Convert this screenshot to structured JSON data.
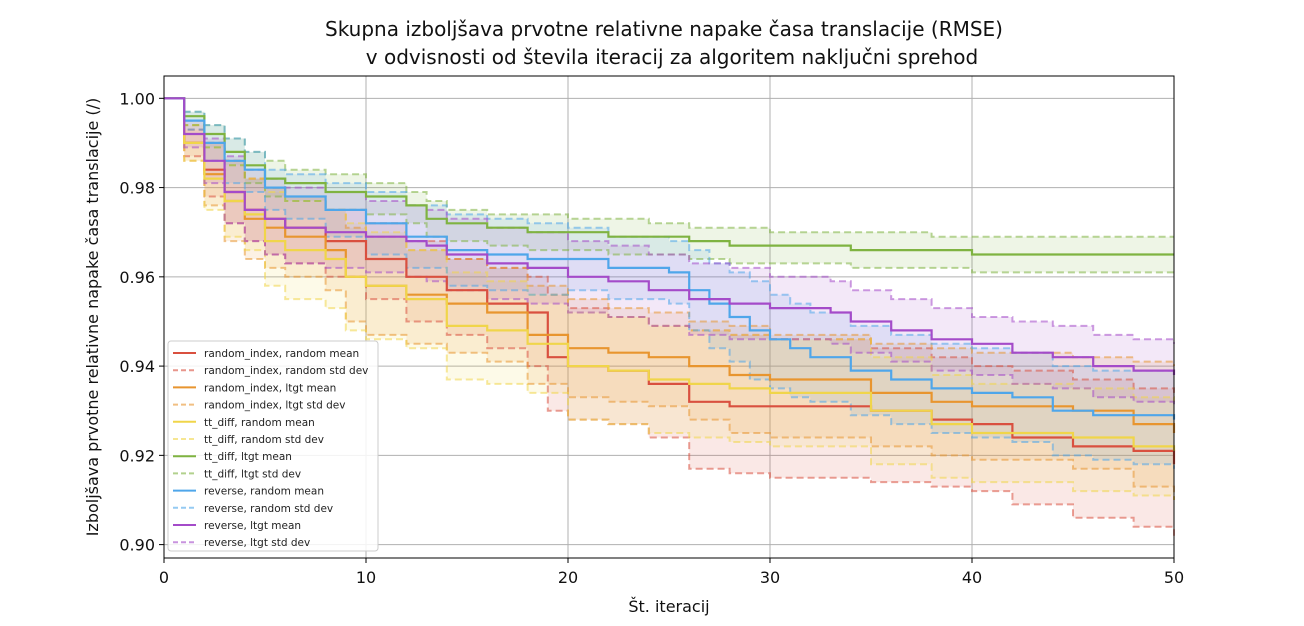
{
  "chart_data": {
    "type": "line",
    "title_line1": "Skupna izboljšava prvotne relativne napake časa translacije (RMSE)",
    "title_line2": "v odvisnosti od števila iteracij za algoritem naključni sprehod",
    "xlabel": "Št. iteracij",
    "ylabel": "Izboljšava prvotne relativne napake časa translacije (/)",
    "xlim": [
      0,
      50
    ],
    "ylim": [
      0.897,
      1.005
    ],
    "xticks": [
      0,
      10,
      20,
      30,
      40,
      50
    ],
    "yticks": [
      0.9,
      0.92,
      0.94,
      0.96,
      0.98,
      1.0
    ],
    "ytick_labels": [
      "0.90",
      "0.92",
      "0.94",
      "0.96",
      "0.98",
      "1.00"
    ],
    "grid": true,
    "legend_position": "lower-left",
    "series": [
      {
        "name": "random_index, random mean",
        "std_name": "random_index, random std dev",
        "color": "#d9503f",
        "x": [
          0,
          1,
          2,
          3,
          4,
          5,
          6,
          8,
          10,
          12,
          14,
          16,
          18,
          19,
          20,
          22,
          24,
          26,
          28,
          30,
          35,
          38,
          40,
          42,
          45,
          48,
          50
        ],
        "mean": [
          1.0,
          0.99,
          0.984,
          0.979,
          0.975,
          0.973,
          0.971,
          0.968,
          0.964,
          0.96,
          0.957,
          0.954,
          0.952,
          0.942,
          0.94,
          0.939,
          0.936,
          0.932,
          0.931,
          0.931,
          0.93,
          0.928,
          0.927,
          0.924,
          0.922,
          0.921,
          0.918
        ],
        "upper": [
          1.0,
          0.993,
          0.99,
          0.986,
          0.982,
          0.98,
          0.978,
          0.975,
          0.972,
          0.968,
          0.964,
          0.962,
          0.96,
          0.956,
          0.953,
          0.951,
          0.949,
          0.948,
          0.947,
          0.946,
          0.944,
          0.942,
          0.94,
          0.939,
          0.937,
          0.935,
          0.934
        ],
        "lower": [
          1.0,
          0.987,
          0.978,
          0.972,
          0.968,
          0.965,
          0.963,
          0.96,
          0.955,
          0.95,
          0.947,
          0.944,
          0.94,
          0.93,
          0.928,
          0.927,
          0.924,
          0.917,
          0.916,
          0.915,
          0.914,
          0.913,
          0.912,
          0.909,
          0.906,
          0.904,
          0.902
        ]
      },
      {
        "name": "random_index, ltgt mean",
        "std_name": "random_index, ltgt std dev",
        "color": "#e8952f",
        "x": [
          0,
          1,
          2,
          3,
          4,
          5,
          6,
          8,
          9,
          10,
          12,
          14,
          16,
          18,
          20,
          22,
          24,
          26,
          28,
          30,
          35,
          38,
          40,
          45,
          48,
          50
        ],
        "mean": [
          1.0,
          0.99,
          0.983,
          0.977,
          0.973,
          0.971,
          0.969,
          0.966,
          0.96,
          0.958,
          0.956,
          0.954,
          0.952,
          0.947,
          0.944,
          0.943,
          0.942,
          0.94,
          0.938,
          0.937,
          0.934,
          0.932,
          0.931,
          0.93,
          0.927,
          0.925
        ],
        "upper": [
          1.0,
          0.994,
          0.99,
          0.986,
          0.982,
          0.98,
          0.978,
          0.975,
          0.971,
          0.969,
          0.966,
          0.964,
          0.962,
          0.958,
          0.955,
          0.953,
          0.952,
          0.95,
          0.949,
          0.947,
          0.945,
          0.944,
          0.943,
          0.942,
          0.941,
          0.94
        ],
        "lower": [
          1.0,
          0.986,
          0.976,
          0.968,
          0.964,
          0.962,
          0.96,
          0.957,
          0.95,
          0.947,
          0.945,
          0.943,
          0.941,
          0.936,
          0.933,
          0.932,
          0.931,
          0.928,
          0.925,
          0.924,
          0.922,
          0.92,
          0.919,
          0.917,
          0.913,
          0.91
        ]
      },
      {
        "name": "tt_diff, random mean",
        "std_name": "tt_diff, random std dev",
        "color": "#f0d54a",
        "x": [
          0,
          1,
          2,
          3,
          4,
          5,
          6,
          8,
          9,
          10,
          12,
          14,
          16,
          18,
          20,
          22,
          24,
          26,
          28,
          30,
          35,
          38,
          40,
          45,
          48,
          50
        ],
        "mean": [
          1.0,
          0.99,
          0.982,
          0.977,
          0.974,
          0.968,
          0.966,
          0.964,
          0.96,
          0.958,
          0.955,
          0.949,
          0.948,
          0.945,
          0.94,
          0.939,
          0.937,
          0.936,
          0.935,
          0.934,
          0.93,
          0.927,
          0.925,
          0.924,
          0.922,
          0.921
        ],
        "upper": [
          1.0,
          0.994,
          0.989,
          0.985,
          0.982,
          0.979,
          0.977,
          0.975,
          0.972,
          0.97,
          0.966,
          0.961,
          0.959,
          0.956,
          0.952,
          0.951,
          0.949,
          0.948,
          0.947,
          0.946,
          0.942,
          0.938,
          0.936,
          0.935,
          0.933,
          0.932
        ],
        "lower": [
          1.0,
          0.986,
          0.975,
          0.969,
          0.966,
          0.958,
          0.955,
          0.953,
          0.948,
          0.946,
          0.944,
          0.937,
          0.936,
          0.934,
          0.928,
          0.927,
          0.925,
          0.924,
          0.923,
          0.922,
          0.918,
          0.915,
          0.914,
          0.912,
          0.911,
          0.91
        ]
      },
      {
        "name": "tt_diff, ltgt mean",
        "std_name": "tt_diff, ltgt std dev",
        "color": "#7fb341",
        "x": [
          0,
          1,
          2,
          3,
          4,
          5,
          6,
          8,
          10,
          12,
          13,
          14,
          16,
          18,
          20,
          22,
          24,
          26,
          28,
          30,
          32,
          34,
          36,
          38,
          40,
          42,
          44,
          46,
          48,
          50
        ],
        "mean": [
          1.0,
          0.996,
          0.992,
          0.988,
          0.985,
          0.982,
          0.981,
          0.979,
          0.978,
          0.976,
          0.973,
          0.972,
          0.971,
          0.97,
          0.97,
          0.969,
          0.969,
          0.968,
          0.967,
          0.967,
          0.967,
          0.966,
          0.966,
          0.966,
          0.965,
          0.965,
          0.965,
          0.965,
          0.965,
          0.965
        ],
        "upper": [
          1.0,
          0.997,
          0.994,
          0.991,
          0.988,
          0.986,
          0.984,
          0.983,
          0.981,
          0.979,
          0.977,
          0.975,
          0.974,
          0.974,
          0.973,
          0.973,
          0.972,
          0.971,
          0.971,
          0.97,
          0.97,
          0.97,
          0.97,
          0.969,
          0.969,
          0.969,
          0.969,
          0.969,
          0.969,
          0.969
        ],
        "lower": [
          1.0,
          0.994,
          0.989,
          0.985,
          0.981,
          0.978,
          0.977,
          0.975,
          0.974,
          0.972,
          0.969,
          0.968,
          0.967,
          0.966,
          0.966,
          0.965,
          0.965,
          0.964,
          0.963,
          0.963,
          0.963,
          0.962,
          0.962,
          0.962,
          0.961,
          0.961,
          0.961,
          0.961,
          0.961,
          0.961
        ]
      },
      {
        "name": "reverse, random mean",
        "std_name": "reverse, random std dev",
        "color": "#4fa6ea",
        "x": [
          0,
          1,
          2,
          3,
          4,
          5,
          6,
          8,
          10,
          12,
          14,
          16,
          18,
          20,
          22,
          25,
          26,
          27,
          28,
          29,
          30,
          31,
          32,
          34,
          36,
          38,
          40,
          42,
          44,
          46,
          48,
          50
        ],
        "mean": [
          1.0,
          0.995,
          0.99,
          0.986,
          0.984,
          0.98,
          0.978,
          0.975,
          0.972,
          0.969,
          0.966,
          0.965,
          0.964,
          0.964,
          0.962,
          0.961,
          0.957,
          0.954,
          0.951,
          0.948,
          0.946,
          0.944,
          0.942,
          0.939,
          0.937,
          0.935,
          0.934,
          0.933,
          0.93,
          0.929,
          0.929,
          0.928
        ],
        "upper": [
          1.0,
          0.997,
          0.994,
          0.991,
          0.988,
          0.984,
          0.983,
          0.981,
          0.979,
          0.976,
          0.974,
          0.973,
          0.972,
          0.971,
          0.969,
          0.968,
          0.966,
          0.963,
          0.961,
          0.959,
          0.956,
          0.954,
          0.952,
          0.949,
          0.947,
          0.945,
          0.944,
          0.943,
          0.94,
          0.939,
          0.939,
          0.938
        ],
        "lower": [
          1.0,
          0.993,
          0.986,
          0.981,
          0.979,
          0.975,
          0.973,
          0.969,
          0.965,
          0.962,
          0.958,
          0.957,
          0.956,
          0.957,
          0.955,
          0.954,
          0.948,
          0.944,
          0.941,
          0.937,
          0.935,
          0.933,
          0.932,
          0.929,
          0.927,
          0.925,
          0.924,
          0.923,
          0.92,
          0.919,
          0.918,
          0.917
        ]
      },
      {
        "name": "reverse, ltgt mean",
        "std_name": "reverse, ltgt std dev",
        "color": "#a44bc9",
        "x": [
          0,
          1,
          2,
          3,
          4,
          5,
          6,
          8,
          10,
          12,
          13,
          14,
          16,
          18,
          20,
          22,
          24,
          26,
          28,
          30,
          33,
          34,
          36,
          38,
          40,
          42,
          44,
          46,
          48,
          50
        ],
        "mean": [
          1.0,
          0.992,
          0.986,
          0.979,
          0.975,
          0.973,
          0.971,
          0.97,
          0.969,
          0.968,
          0.967,
          0.965,
          0.963,
          0.962,
          0.96,
          0.959,
          0.957,
          0.955,
          0.954,
          0.953,
          0.952,
          0.95,
          0.948,
          0.946,
          0.945,
          0.943,
          0.942,
          0.94,
          0.939,
          0.938
        ],
        "upper": [
          1.0,
          0.995,
          0.991,
          0.987,
          0.984,
          0.982,
          0.98,
          0.979,
          0.977,
          0.976,
          0.975,
          0.973,
          0.971,
          0.97,
          0.968,
          0.967,
          0.965,
          0.963,
          0.962,
          0.96,
          0.959,
          0.957,
          0.955,
          0.953,
          0.951,
          0.95,
          0.949,
          0.947,
          0.946,
          0.945
        ],
        "lower": [
          1.0,
          0.989,
          0.981,
          0.972,
          0.968,
          0.965,
          0.963,
          0.962,
          0.961,
          0.96,
          0.959,
          0.957,
          0.955,
          0.954,
          0.952,
          0.951,
          0.949,
          0.947,
          0.946,
          0.946,
          0.945,
          0.943,
          0.941,
          0.939,
          0.938,
          0.936,
          0.935,
          0.933,
          0.932,
          0.931
        ]
      }
    ]
  }
}
